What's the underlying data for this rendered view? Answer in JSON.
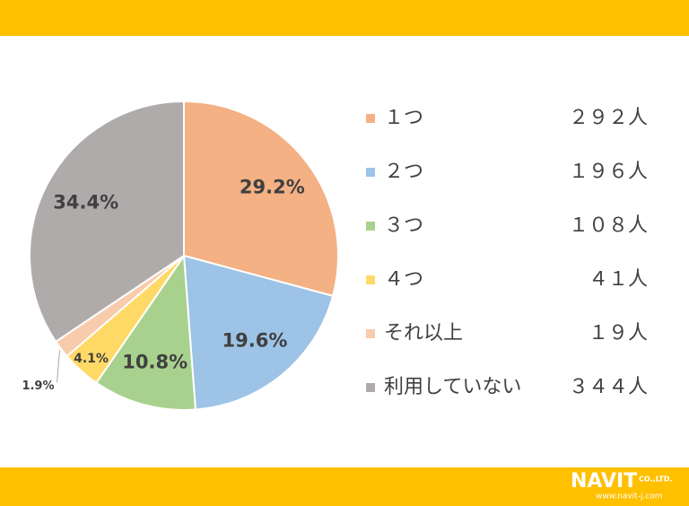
{
  "chart_data": {
    "type": "pie",
    "categories": [
      "１つ",
      "２つ",
      "３つ",
      "４つ",
      "それ以上",
      "利用していない"
    ],
    "values": [
      29.2,
      19.6,
      10.8,
      4.1,
      1.9,
      34.4
    ],
    "value_labels": [
      "29.2%",
      "19.6%",
      "10.8%",
      "4.1%",
      "1.9%",
      "34.4%"
    ],
    "colors": [
      "#F4B183",
      "#9DC3E6",
      "#A9D18E",
      "#FFD966",
      "#F8CBAD",
      "#AFABAB"
    ],
    "legend_counts": [
      "２９２人",
      "１９６人",
      "１０８人",
      "４１人",
      "１９人",
      "３４４人"
    ]
  },
  "footer": {
    "logo": "NAVIT",
    "company": "CO.,LTD.",
    "url": "www.navit-j.com"
  }
}
